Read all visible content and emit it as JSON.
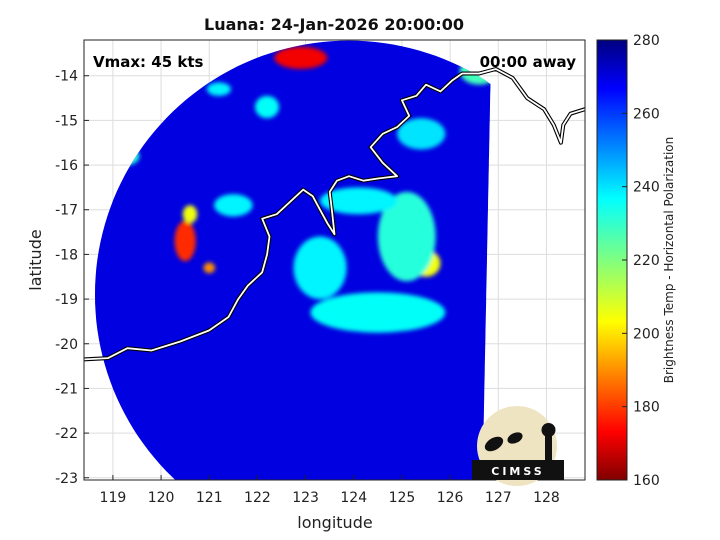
{
  "chart_data": {
    "type": "heatmap",
    "title": "Luana: 24-Jan-2026 20:00:00",
    "xlabel": "longitude",
    "ylabel": "latitude",
    "xlim": [
      118.4,
      128.8
    ],
    "ylim": [
      -23.05,
      -13.2
    ],
    "xticks": [
      119,
      120,
      121,
      122,
      123,
      124,
      125,
      126,
      127,
      128
    ],
    "yticks": [
      -14,
      -15,
      -16,
      -17,
      -18,
      -19,
      -20,
      -21,
      -22,
      -23
    ],
    "grid": true,
    "annotations": {
      "vmax": "Vmax: 45 kts",
      "time_away": "00:00 away"
    },
    "colorbar": {
      "label": "Brightness Temp - Horizontal Polarization",
      "range": [
        160,
        280
      ],
      "ticks": [
        160,
        180,
        200,
        220,
        240,
        260,
        280
      ],
      "colormap": "jet"
    },
    "background_temp": 270,
    "features": [
      {
        "kind": "blob",
        "lon": 120.5,
        "lat": -17.7,
        "rlon": 0.22,
        "rlat": 0.45,
        "temp": 178
      },
      {
        "kind": "blob",
        "lon": 120.6,
        "lat": -17.1,
        "rlon": 0.15,
        "rlat": 0.2,
        "temp": 205
      },
      {
        "kind": "blob",
        "lon": 121.0,
        "lat": -18.3,
        "rlon": 0.12,
        "rlat": 0.12,
        "temp": 190
      },
      {
        "kind": "blob",
        "lon": 122.9,
        "lat": -13.6,
        "rlon": 0.55,
        "rlat": 0.25,
        "temp": 172
      },
      {
        "kind": "blob",
        "lon": 125.5,
        "lat": -18.2,
        "rlon": 0.3,
        "rlat": 0.3,
        "temp": 205
      },
      {
        "kind": "blob",
        "lon": 125.1,
        "lat": -17.6,
        "rlon": 0.6,
        "rlat": 1.0,
        "temp": 232
      },
      {
        "kind": "blob",
        "lon": 124.5,
        "lat": -19.3,
        "rlon": 1.4,
        "rlat": 0.45,
        "temp": 236
      },
      {
        "kind": "blob",
        "lon": 123.3,
        "lat": -18.3,
        "rlon": 0.55,
        "rlat": 0.7,
        "temp": 238
      },
      {
        "kind": "blob",
        "lon": 124.1,
        "lat": -16.8,
        "rlon": 0.8,
        "rlat": 0.3,
        "temp": 238
      },
      {
        "kind": "blob",
        "lon": 121.5,
        "lat": -16.9,
        "rlon": 0.4,
        "rlat": 0.25,
        "temp": 238
      },
      {
        "kind": "blob",
        "lon": 119.3,
        "lat": -15.8,
        "rlon": 0.25,
        "rlat": 0.2,
        "temp": 232
      },
      {
        "kind": "blob",
        "lon": 126.6,
        "lat": -13.9,
        "rlon": 0.4,
        "rlat": 0.3,
        "temp": 228
      },
      {
        "kind": "blob",
        "lon": 122.2,
        "lat": -14.7,
        "rlon": 0.25,
        "rlat": 0.25,
        "temp": 236
      },
      {
        "kind": "blob",
        "lon": 125.4,
        "lat": -15.3,
        "rlon": 0.5,
        "rlat": 0.35,
        "temp": 240
      },
      {
        "kind": "blob",
        "lon": 121.2,
        "lat": -14.3,
        "rlon": 0.25,
        "rlat": 0.15,
        "temp": 238
      }
    ],
    "coastline": [
      [
        118.4,
        -20.35
      ],
      [
        118.9,
        -20.32
      ],
      [
        119.3,
        -20.1
      ],
      [
        119.8,
        -20.15
      ],
      [
        120.4,
        -19.95
      ],
      [
        121.0,
        -19.7
      ],
      [
        121.4,
        -19.4
      ],
      [
        121.6,
        -19.0
      ],
      [
        121.8,
        -18.7
      ],
      [
        122.1,
        -18.4
      ],
      [
        122.2,
        -18.0
      ],
      [
        122.25,
        -17.6
      ],
      [
        122.1,
        -17.2
      ],
      [
        122.4,
        -17.1
      ],
      [
        122.6,
        -16.9
      ],
      [
        122.8,
        -16.7
      ],
      [
        122.95,
        -16.55
      ],
      [
        123.15,
        -16.7
      ],
      [
        123.3,
        -17.0
      ],
      [
        123.45,
        -17.3
      ],
      [
        123.6,
        -17.55
      ],
      [
        123.55,
        -17.05
      ],
      [
        123.5,
        -16.6
      ],
      [
        123.65,
        -16.35
      ],
      [
        123.9,
        -16.25
      ],
      [
        124.2,
        -16.35
      ],
      [
        124.5,
        -16.3
      ],
      [
        124.9,
        -16.25
      ],
      [
        124.6,
        -15.95
      ],
      [
        124.35,
        -15.6
      ],
      [
        124.6,
        -15.3
      ],
      [
        124.9,
        -15.15
      ],
      [
        125.15,
        -14.9
      ],
      [
        125.0,
        -14.55
      ],
      [
        125.3,
        -14.45
      ],
      [
        125.5,
        -14.2
      ],
      [
        125.8,
        -14.35
      ],
      [
        126.05,
        -14.1
      ],
      [
        126.25,
        -13.95
      ],
      [
        126.6,
        -13.95
      ],
      [
        126.95,
        -13.85
      ],
      [
        127.3,
        -14.05
      ],
      [
        127.6,
        -14.5
      ],
      [
        127.95,
        -14.75
      ],
      [
        128.15,
        -15.1
      ],
      [
        128.3,
        -15.5
      ],
      [
        128.35,
        -15.1
      ],
      [
        128.5,
        -14.85
      ],
      [
        128.8,
        -14.75
      ]
    ]
  },
  "logo": {
    "text": "CIMSS"
  }
}
